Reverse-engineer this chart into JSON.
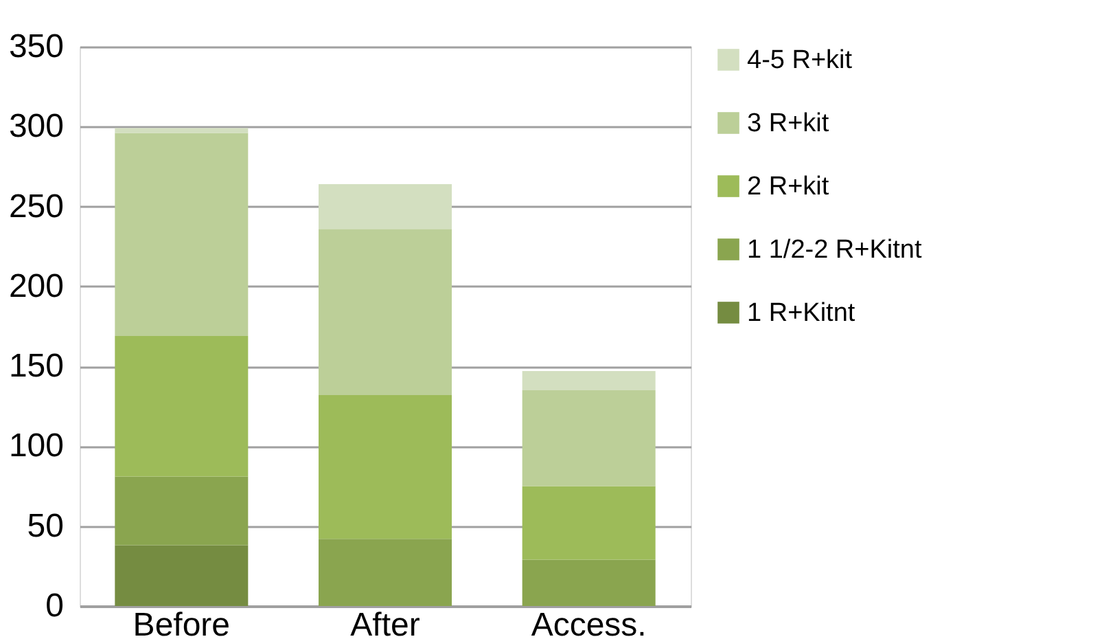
{
  "chart_data": {
    "type": "bar",
    "stacked": true,
    "categories": [
      "Before",
      "After",
      "Access."
    ],
    "series": [
      {
        "name": "1 R+Kitnt",
        "color": "#758c41",
        "values": [
          38,
          0,
          0
        ]
      },
      {
        "name": "1 1/2-2 R+Kitnt",
        "color": "#8aa54f",
        "values": [
          43,
          42,
          29
        ]
      },
      {
        "name": "2 R+kit",
        "color": "#9dbb59",
        "values": [
          88,
          90,
          46
        ]
      },
      {
        "name": "3 R+kit",
        "color": "#bccf98",
        "values": [
          127,
          104,
          60
        ]
      },
      {
        "name": "4-5 R+kit",
        "color": "#d3dfc0",
        "values": [
          3,
          28,
          12
        ]
      }
    ],
    "ylim": [
      0,
      350
    ],
    "yticks": [
      0,
      50,
      100,
      150,
      200,
      250,
      300,
      350
    ],
    "grid": "y",
    "legend": "right"
  }
}
